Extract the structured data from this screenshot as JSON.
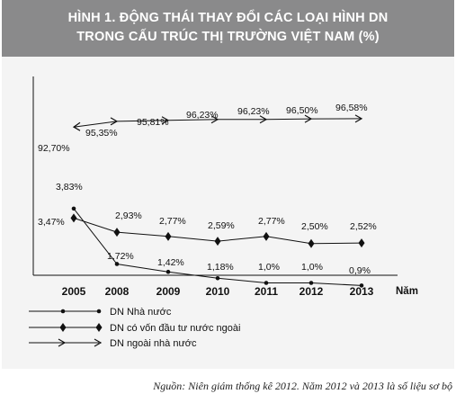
{
  "figure": {
    "title_line1": "HÌNH 1. ĐỘNG THÁI THAY ĐỔI CÁC LOẠI HÌNH DN",
    "title_line2": "TRONG CẤU TRÚC THỊ TRƯỜNG VIỆT NAM (%)",
    "source": "Nguồn: Niên giám thống kê 2012. Năm 2012 và 2013 là số liệu sơ bộ"
  },
  "chart_data": {
    "type": "line",
    "title": "HÌNH 1. ĐỘNG THÁI THAY ĐỔI CÁC LOẠI HÌNH DN TRONG CẤU TRÚC THỊ TRƯỜNG VIỆT NAM (%)",
    "xlabel": "Năm",
    "ylabel": "",
    "categories": [
      "2005",
      "2008",
      "2009",
      "2010",
      "2011",
      "2012",
      "2013"
    ],
    "series": [
      {
        "name": "DN ngoài nhà nước",
        "marker": "arrow",
        "values": [
          92.7,
          95.35,
          95.81,
          96.23,
          96.23,
          96.5,
          96.58
        ],
        "labels": [
          "92,70%",
          "95,35%",
          "95,81%",
          "96,23%",
          "96,23%",
          "96,50%",
          "96,58%"
        ]
      },
      {
        "name": "DN có vốn đầu tư nước ngoài",
        "marker": "diamond",
        "values": [
          3.47,
          2.93,
          2.77,
          2.59,
          2.77,
          2.5,
          2.52
        ],
        "labels": [
          "3,47%",
          "2,93%",
          "2,77%",
          "2,59%",
          "2,77%",
          "2,50%",
          "2,52%"
        ]
      },
      {
        "name": "DN Nhà nước",
        "marker": "dot",
        "values": [
          3.83,
          1.72,
          1.42,
          1.18,
          1.0,
          1.0,
          0.9
        ],
        "labels": [
          "3,83%",
          "1,72%",
          "1,42%",
          "1,18%",
          "1,0%",
          "1,0%",
          "0,9%"
        ]
      }
    ],
    "legend_position": "bottom-left",
    "grid": false
  }
}
